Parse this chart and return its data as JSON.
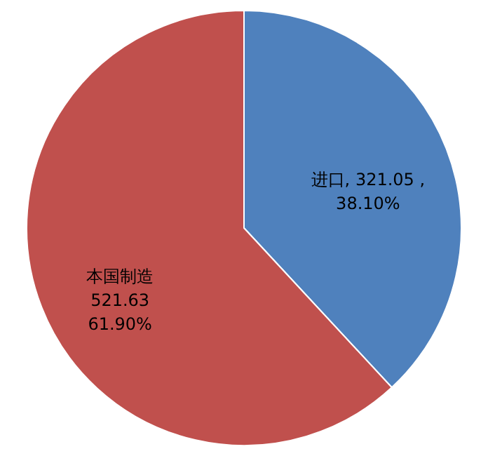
{
  "chart_data": {
    "type": "pie",
    "categories": [
      "进口",
      "本国制造"
    ],
    "values": [
      321.05,
      521.63
    ],
    "colors": [
      "#4f81bd",
      "#c0504d"
    ],
    "value_labels": [
      ", 321.05 ,\n38.10%",
      "\n521.63\n61.90%"
    ]
  }
}
